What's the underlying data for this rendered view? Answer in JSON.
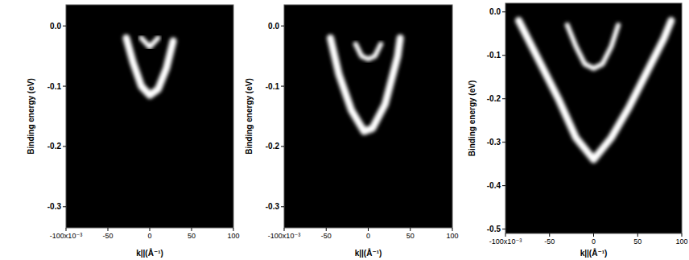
{
  "chart_data": [
    {
      "type": "line",
      "x_label": "k||(Å⁻¹)",
      "y_label": "Binding energy (eV)",
      "xlim": [
        -100,
        100
      ],
      "ylim": [
        -0.335,
        0.035
      ],
      "xticks": [
        {
          "value": -100,
          "label": "-100x10⁻³"
        },
        -50,
        0,
        50,
        100
      ],
      "yticks": [
        {
          "value": 0,
          "label": "0.0"
        },
        -0.1,
        -0.2,
        -0.3
      ],
      "grid": false,
      "series": [
        {
          "color": "#ffffff",
          "x": [
            -28,
            -20,
            -10,
            0,
            10,
            20,
            28
          ],
          "values": [
            -0.02,
            -0.06,
            -0.1,
            -0.115,
            -0.105,
            -0.07,
            -0.025
          ]
        },
        {
          "color": "#ffffff",
          "x": [
            -10,
            0,
            10
          ],
          "values": [
            -0.02,
            -0.035,
            -0.02
          ]
        }
      ]
    },
    {
      "type": "line",
      "x_label": "k||(Å⁻¹)",
      "y_label": "Binding energy (eV)",
      "xlim": [
        -100,
        100
      ],
      "ylim": [
        -0.335,
        0.035
      ],
      "xticks": [
        {
          "value": -100,
          "label": "-100x10⁻³"
        },
        -50,
        0,
        50,
        100
      ],
      "yticks": [
        {
          "value": 0,
          "label": "0.0"
        },
        -0.1,
        -0.2,
        -0.3
      ],
      "grid": false,
      "series": [
        {
          "color": "#ffffff",
          "x": [
            -45,
            -35,
            -20,
            -5,
            5,
            20,
            35,
            38
          ],
          "values": [
            -0.02,
            -0.08,
            -0.14,
            -0.175,
            -0.17,
            -0.13,
            -0.05,
            -0.02
          ]
        },
        {
          "color": "#ffffff",
          "x": [
            -15,
            -8,
            0,
            8,
            15
          ],
          "values": [
            -0.03,
            -0.05,
            -0.055,
            -0.05,
            -0.03
          ]
        }
      ]
    },
    {
      "type": "line",
      "x_label": "k||(Å⁻¹)",
      "y_label": "Binding energy (eV)",
      "xlim": [
        -100,
        100
      ],
      "ylim": [
        -0.51,
        0.02
      ],
      "xticks": [
        {
          "value": -100,
          "label": "-100x10⁻³"
        },
        -50,
        0,
        50,
        100
      ],
      "yticks": [
        {
          "value": 0,
          "label": "0.0"
        },
        -0.1,
        -0.2,
        -0.3,
        -0.4,
        -0.5
      ],
      "grid": false,
      "series": [
        {
          "color": "#ffffff",
          "x": [
            -85,
            -60,
            -40,
            -20,
            0,
            20,
            40,
            60,
            80,
            88
          ],
          "values": [
            -0.02,
            -0.12,
            -0.2,
            -0.29,
            -0.34,
            -0.29,
            -0.22,
            -0.14,
            -0.06,
            -0.02
          ]
        },
        {
          "color": "#ffffff",
          "x": [
            -30,
            -20,
            -10,
            0,
            10,
            20,
            28
          ],
          "values": [
            -0.03,
            -0.08,
            -0.12,
            -0.13,
            -0.12,
            -0.08,
            -0.03
          ]
        }
      ]
    }
  ]
}
